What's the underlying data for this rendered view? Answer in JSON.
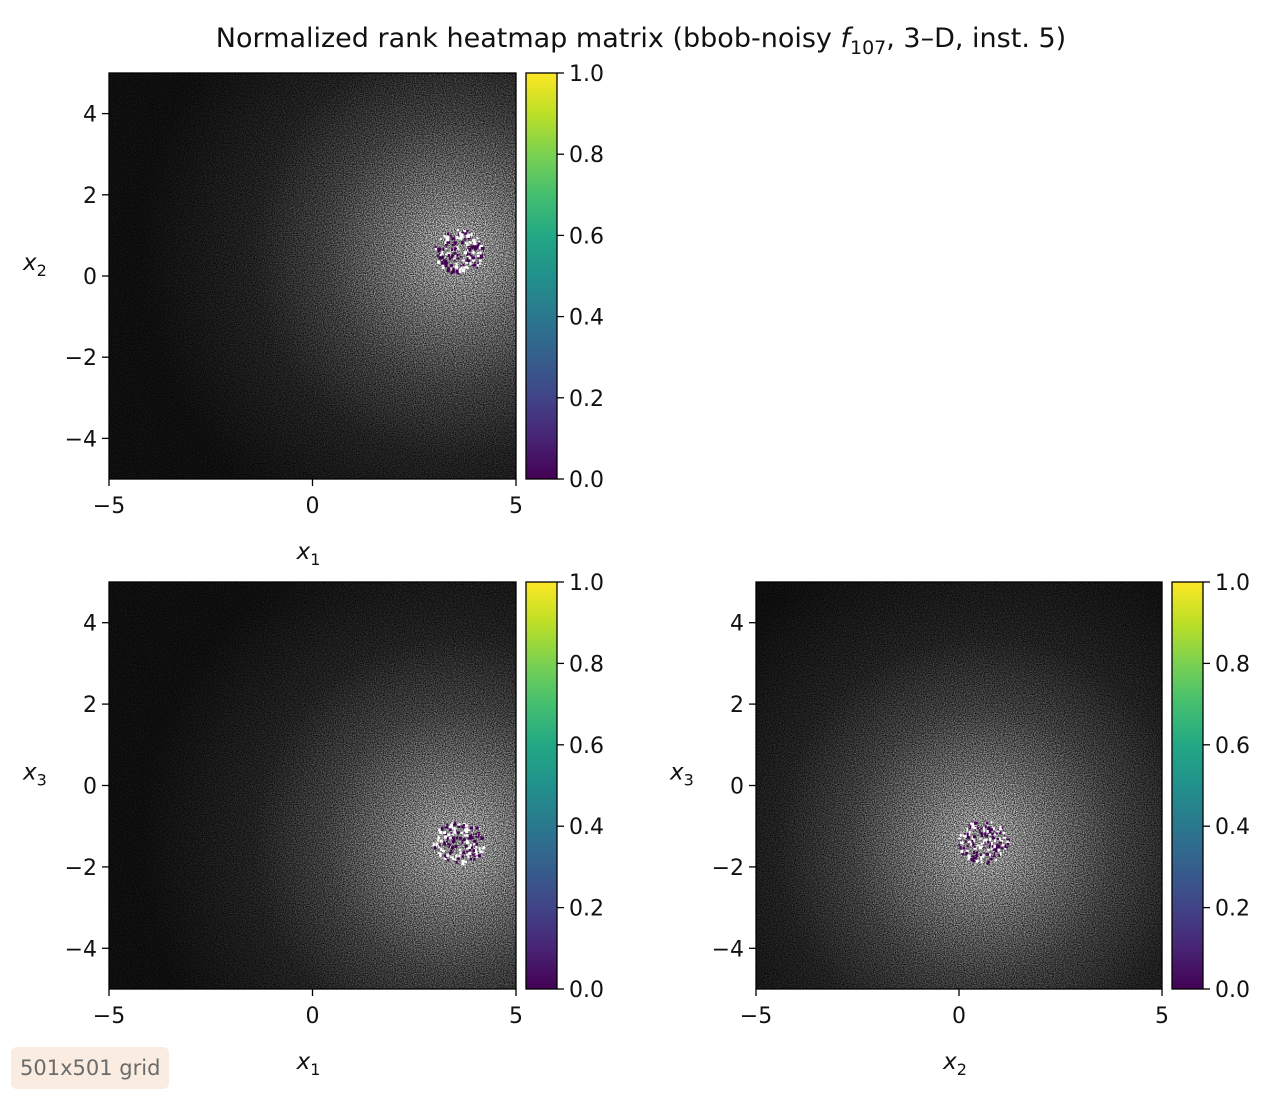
{
  "chart_data": {
    "title": {
      "prefix": "Normalized rank heatmap matrix (bbob-noisy ",
      "f": "f",
      "sub": "107",
      "suffix": ", 3–D, inst. 5)"
    },
    "type": "heatmap",
    "grid_note": "501x501 grid",
    "colorbar": {
      "colormap": "viridis",
      "ticks": [
        "0.0",
        "0.2",
        "0.4",
        "0.6",
        "0.8",
        "1.0"
      ],
      "range": [
        0,
        1
      ]
    },
    "panels": [
      {
        "id": "x1-x2",
        "xlabel": {
          "base": "x",
          "sub": "1"
        },
        "ylabel": {
          "base": "x",
          "sub": "2"
        },
        "xlim": [
          -5,
          5
        ],
        "ylim": [
          -5,
          5
        ],
        "xticks": [
          "−5",
          "0",
          "5"
        ],
        "yticks": [
          "−4",
          "−2",
          "0",
          "2",
          "4"
        ],
        "bright_center": [
          3.6,
          0.6
        ],
        "optimum_region": [
          3.6,
          0.6
        ]
      },
      {
        "id": "x1-x3",
        "xlabel": {
          "base": "x",
          "sub": "1"
        },
        "ylabel": {
          "base": "x",
          "sub": "3"
        },
        "xlim": [
          -5,
          5
        ],
        "ylim": [
          -5,
          5
        ],
        "xticks": [
          "−5",
          "0",
          "5"
        ],
        "yticks": [
          "−4",
          "−2",
          "0",
          "2",
          "4"
        ],
        "bright_center": [
          3.6,
          -1.4
        ],
        "optimum_region": [
          3.6,
          -1.4
        ]
      },
      {
        "id": "x2-x3",
        "xlabel": {
          "base": "x",
          "sub": "2"
        },
        "ylabel": {
          "base": "x",
          "sub": "3"
        },
        "xlim": [
          -5,
          5
        ],
        "ylim": [
          -5,
          5
        ],
        "xticks": [
          "−5",
          "0",
          "5"
        ],
        "yticks": [
          "−4",
          "−2",
          "0",
          "2",
          "4"
        ],
        "bright_center": [
          0.6,
          -1.4
        ],
        "optimum_region": [
          0.6,
          -1.4
        ]
      }
    ]
  }
}
